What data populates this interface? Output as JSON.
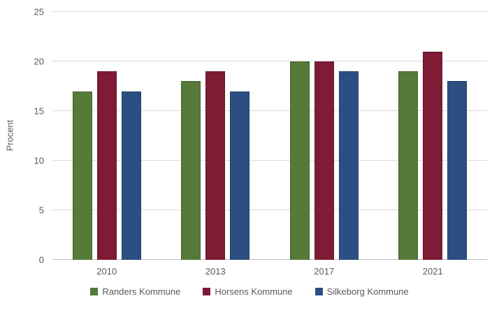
{
  "chart_data": {
    "type": "bar",
    "title": "",
    "xlabel": "",
    "ylabel": "Procent",
    "categories": [
      "2010",
      "2013",
      "2017",
      "2021"
    ],
    "series": [
      {
        "name": "Randers Kommune",
        "color": "#567A39",
        "values": [
          17,
          18,
          20,
          19
        ]
      },
      {
        "name": "Horsens Kommune",
        "color": "#7E1B35",
        "values": [
          19,
          19,
          20,
          21
        ]
      },
      {
        "name": "Silkeborg Kommune",
        "color": "#2B4F81",
        "values": [
          17,
          17,
          19,
          18
        ]
      }
    ],
    "ylim": [
      0,
      25
    ],
    "yticks": [
      0,
      5,
      10,
      15,
      20,
      25
    ],
    "grid": true,
    "legend_position": "bottom"
  },
  "style_colors": {
    "text": "#595959",
    "gridline": "#D9D9D9",
    "axis_line": "#BFBFBF",
    "background": "#FFFFFF"
  }
}
